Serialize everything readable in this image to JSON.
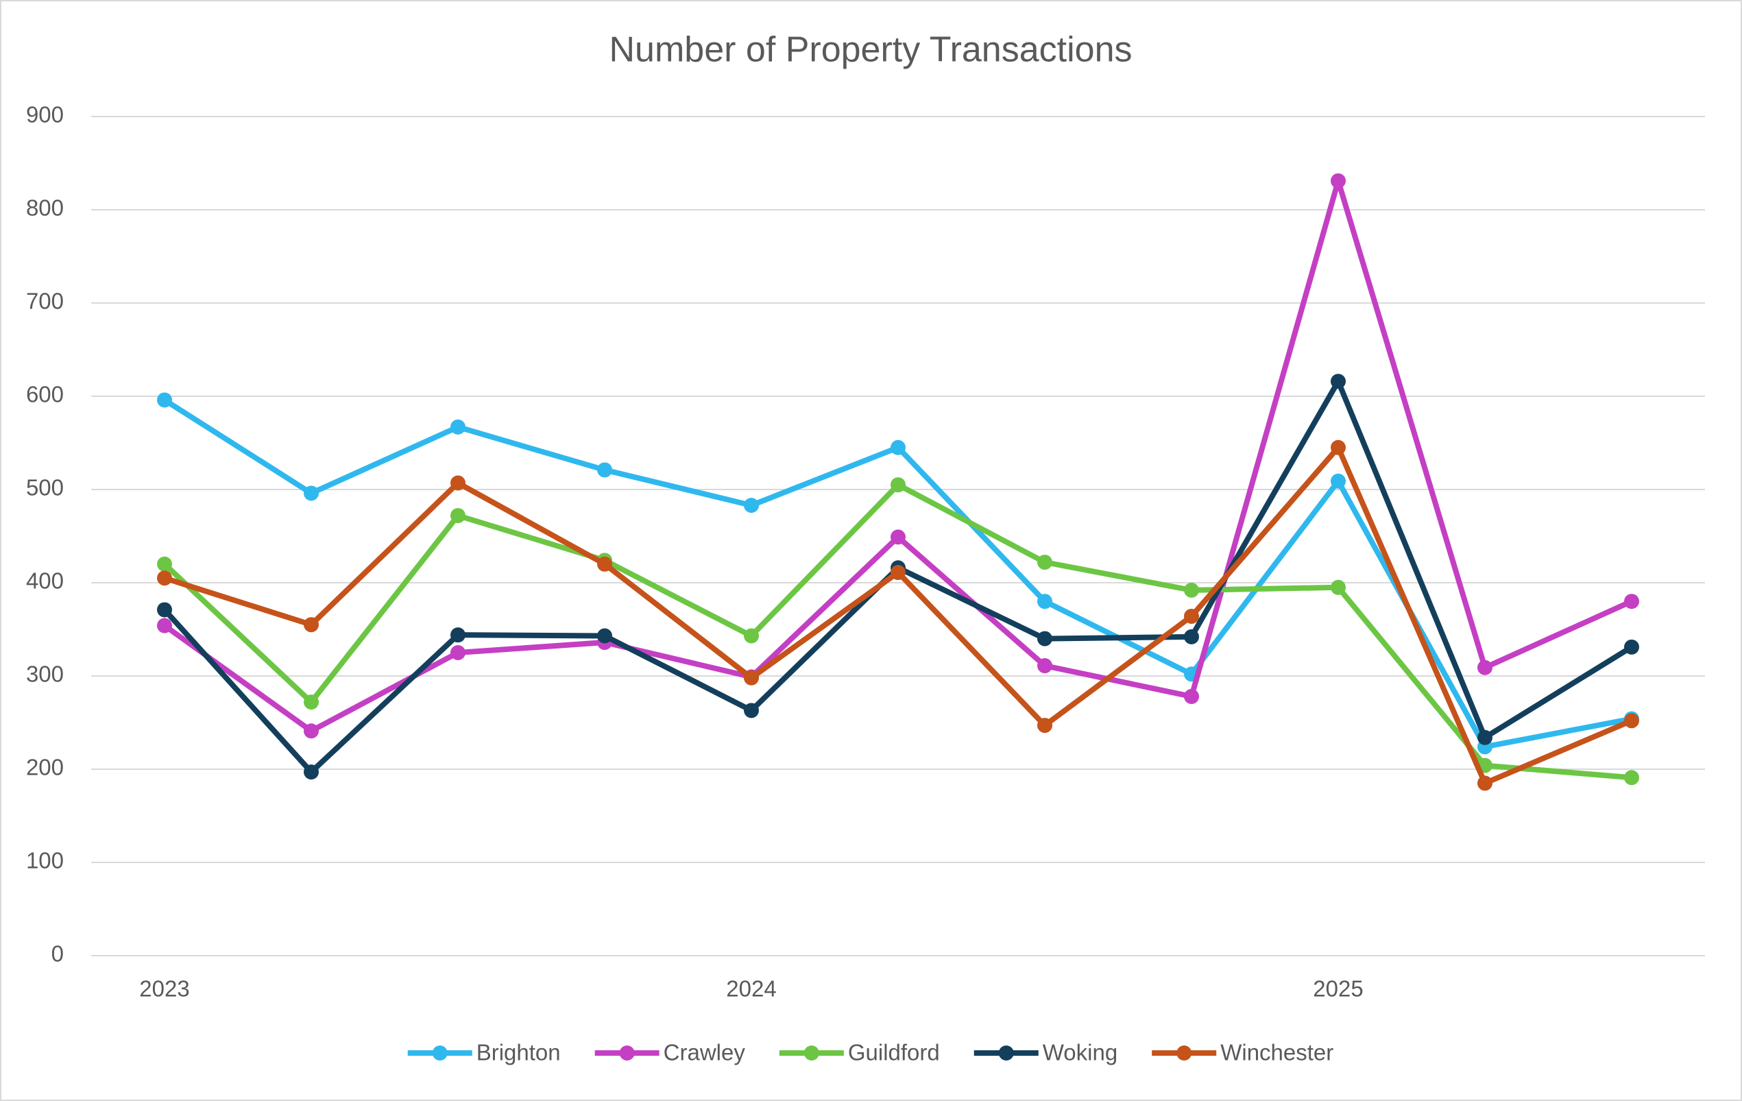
{
  "chart_data": {
    "type": "line",
    "title": "Number of Property Transactions",
    "categories": [
      "2023",
      null,
      null,
      null,
      "2024",
      null,
      null,
      null,
      "2025",
      null,
      null
    ],
    "series": [
      {
        "name": "Brighton",
        "color": "#2fb8ee",
        "values": [
          596,
          496,
          567,
          521,
          483,
          545,
          380,
          302,
          509,
          224,
          254
        ]
      },
      {
        "name": "Crawley",
        "color": "#c43fc4",
        "values": [
          354,
          241,
          325,
          336,
          299,
          449,
          311,
          278,
          831,
          309,
          380
        ]
      },
      {
        "name": "Guildford",
        "color": "#6cc644",
        "values": [
          420,
          272,
          472,
          424,
          343,
          505,
          422,
          392,
          395,
          204,
          191
        ]
      },
      {
        "name": "Woking",
        "color": "#133f5c",
        "values": [
          371,
          197,
          344,
          343,
          263,
          416,
          340,
          342,
          616,
          234,
          331
        ]
      },
      {
        "name": "Winchester",
        "color": "#c5531a",
        "values": [
          405,
          355,
          507,
          420,
          298,
          411,
          247,
          364,
          545,
          185,
          252
        ]
      }
    ],
    "ylim": [
      0,
      900
    ],
    "yticks": [
      0,
      100,
      200,
      300,
      400,
      500,
      600,
      700,
      800,
      900
    ],
    "grid": true,
    "legend": "bottom"
  }
}
